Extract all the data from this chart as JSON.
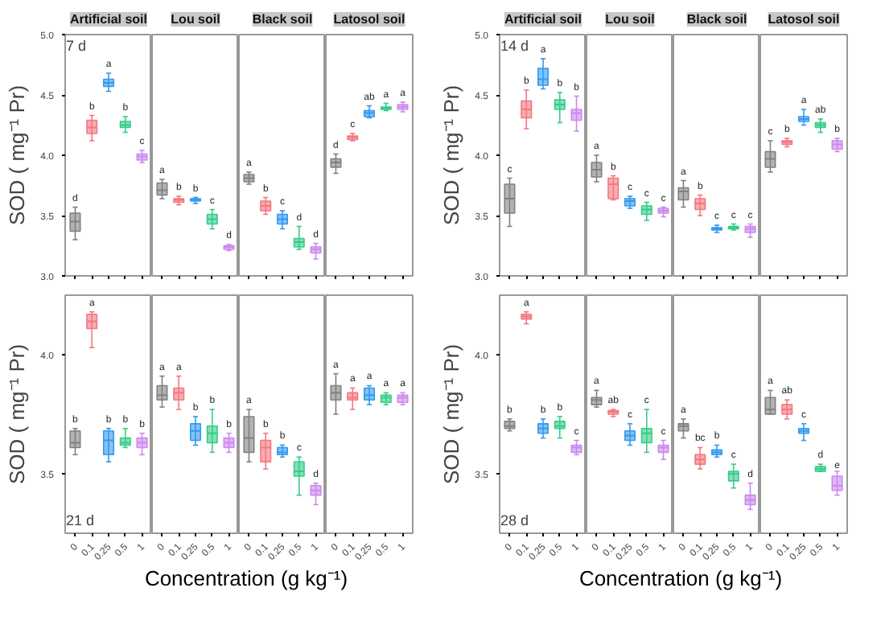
{
  "chart_data": [
    {
      "type": "box",
      "title": "Artificial soil",
      "ylabel": "SOD ( mg⁻¹ Pr)",
      "tick_labels": "y",
      "categories": [
        "0",
        "0.1",
        "0.25",
        "0.5",
        "1"
      ],
      "colors": [
        "#808080",
        "#f4777f",
        "#3399ee",
        "#33cc88",
        "#cc88ee"
      ],
      "ylim": [
        3.0,
        5.0
      ],
      "yticks": [
        {
          "value": 3.0,
          "label": "3.0"
        },
        {
          "value": 3.5,
          "label": "3.5"
        },
        {
          "value": 4.0,
          "label": "4.0"
        },
        {
          "value": 4.5,
          "label": "4.5"
        },
        {
          "value": 5.0,
          "label": "5.0"
        }
      ],
      "boxes": [
        {
          "low": 3.3,
          "q1": 3.37,
          "median": 3.45,
          "q3": 3.52,
          "high": 3.57
        },
        {
          "low": 4.12,
          "q1": 4.18,
          "median": 4.23,
          "q3": 4.29,
          "high": 4.33
        },
        {
          "low": 4.53,
          "q1": 4.57,
          "median": 4.6,
          "q3": 4.63,
          "high": 4.68
        },
        {
          "low": 4.19,
          "q1": 4.23,
          "median": 4.25,
          "q3": 4.28,
          "high": 4.32
        },
        {
          "low": 3.94,
          "q1": 3.96,
          "median": 3.99,
          "q3": 4.01,
          "high": 4.04
        }
      ],
      "annotations": [
        "7 d",
        {
          "text": "d",
          "x": "0",
          "y": 3.57
        },
        {
          "text": "b",
          "x": "0.1",
          "y": 4.33
        },
        {
          "text": "a",
          "x": "0.25",
          "y": 4.68
        },
        {
          "text": "b",
          "x": "0.5",
          "y": 4.32
        },
        {
          "text": "c",
          "x": "1",
          "y": 4.04
        }
      ]
    },
    {
      "type": "box",
      "title": "Lou soil",
      "tick_labels": false,
      "categories": [
        "0",
        "0.1",
        "0.25",
        "0.5",
        "1"
      ],
      "colors": [
        "#808080",
        "#f4777f",
        "#3399ee",
        "#33cc88",
        "#cc88ee"
      ],
      "ylim": [
        3.0,
        5.0
      ],
      "boxes": [
        {
          "low": 3.64,
          "q1": 3.67,
          "median": 3.71,
          "q3": 3.77,
          "high": 3.8
        },
        {
          "low": 3.59,
          "q1": 3.61,
          "median": 3.63,
          "q3": 3.64,
          "high": 3.66
        },
        {
          "low": 3.6,
          "q1": 3.62,
          "median": 3.63,
          "q3": 3.64,
          "high": 3.65
        },
        {
          "low": 3.39,
          "q1": 3.43,
          "median": 3.47,
          "q3": 3.51,
          "high": 3.55
        },
        {
          "low": 3.21,
          "q1": 3.22,
          "median": 3.24,
          "q3": 3.25,
          "high": 3.26
        }
      ],
      "annotations": [
        {
          "text": "a",
          "x": "0",
          "y": 3.8
        },
        {
          "text": "b",
          "x": "0.1",
          "y": 3.66
        },
        {
          "text": "b",
          "x": "0.25",
          "y": 3.65
        },
        {
          "text": "c",
          "x": "0.5",
          "y": 3.55
        },
        {
          "text": "d",
          "x": "1",
          "y": 3.26
        }
      ]
    },
    {
      "type": "box",
      "title": "Black soil",
      "tick_labels": false,
      "categories": [
        "0",
        "0.1",
        "0.25",
        "0.5",
        "1"
      ],
      "colors": [
        "#808080",
        "#f4777f",
        "#3399ee",
        "#33cc88",
        "#cc88ee"
      ],
      "ylim": [
        3.0,
        5.0
      ],
      "boxes": [
        {
          "low": 3.76,
          "q1": 3.78,
          "median": 3.81,
          "q3": 3.84,
          "high": 3.86
        },
        {
          "low": 3.51,
          "q1": 3.54,
          "median": 3.58,
          "q3": 3.62,
          "high": 3.65
        },
        {
          "low": 3.39,
          "q1": 3.43,
          "median": 3.47,
          "q3": 3.51,
          "high": 3.54
        },
        {
          "low": 3.22,
          "q1": 3.24,
          "median": 3.28,
          "q3": 3.31,
          "high": 3.41
        },
        {
          "low": 3.14,
          "q1": 3.19,
          "median": 3.22,
          "q3": 3.24,
          "high": 3.27
        }
      ],
      "annotations": [
        {
          "text": "a",
          "x": "0",
          "y": 3.86
        },
        {
          "text": "b",
          "x": "0.1",
          "y": 3.65
        },
        {
          "text": "c",
          "x": "0.25",
          "y": 3.54
        },
        {
          "text": "d",
          "x": "0.5",
          "y": 3.41
        },
        {
          "text": "d",
          "x": "1",
          "y": 3.27
        }
      ]
    },
    {
      "type": "box",
      "title": "Latosol soil",
      "tick_labels": false,
      "categories": [
        "0",
        "0.1",
        "0.25",
        "0.5",
        "1"
      ],
      "colors": [
        "#808080",
        "#f4777f",
        "#3399ee",
        "#33cc88",
        "#cc88ee"
      ],
      "ylim": [
        3.0,
        5.0
      ],
      "boxes": [
        {
          "low": 3.85,
          "q1": 3.9,
          "median": 3.94,
          "q3": 3.97,
          "high": 4.01
        },
        {
          "low": 4.12,
          "q1": 4.13,
          "median": 4.15,
          "q3": 4.16,
          "high": 4.18
        },
        {
          "low": 4.31,
          "q1": 4.32,
          "median": 4.35,
          "q3": 4.37,
          "high": 4.41
        },
        {
          "low": 4.37,
          "q1": 4.38,
          "median": 4.39,
          "q3": 4.4,
          "high": 4.43
        },
        {
          "low": 4.36,
          "q1": 4.38,
          "median": 4.4,
          "q3": 4.42,
          "high": 4.44
        }
      ],
      "annotations": [
        {
          "text": "d",
          "x": "0",
          "y": 4.01
        },
        {
          "text": "c",
          "x": "0.1",
          "y": 4.18
        },
        {
          "text": "ab",
          "x": "0.25",
          "y": 4.41
        },
        {
          "text": "a",
          "x": "0.5",
          "y": 4.43
        },
        {
          "text": "a",
          "x": "1",
          "y": 4.44
        }
      ]
    },
    {
      "type": "box",
      "title": "Artificial soil",
      "ylabel": "SOD ( mg⁻¹ Pr)",
      "tick_labels": "y",
      "categories": [
        "0",
        "0.1",
        "0.25",
        "0.5",
        "1"
      ],
      "colors": [
        "#808080",
        "#f4777f",
        "#3399ee",
        "#33cc88",
        "#cc88ee"
      ],
      "ylim": [
        3.0,
        5.0
      ],
      "yticks": [
        {
          "value": 3.0,
          "label": "3.0"
        },
        {
          "value": 3.5,
          "label": "3.5"
        },
        {
          "value": 4.0,
          "label": "4.0"
        },
        {
          "value": 4.5,
          "label": "4.5"
        },
        {
          "value": 5.0,
          "label": "5.0"
        }
      ],
      "boxes": [
        {
          "low": 3.41,
          "q1": 3.52,
          "median": 3.64,
          "q3": 3.76,
          "high": 3.81
        },
        {
          "low": 4.22,
          "q1": 4.31,
          "median": 4.38,
          "q3": 4.45,
          "high": 4.54
        },
        {
          "low": 4.55,
          "q1": 4.58,
          "median": 4.63,
          "q3": 4.72,
          "high": 4.8
        },
        {
          "low": 4.27,
          "q1": 4.38,
          "median": 4.42,
          "q3": 4.46,
          "high": 4.52
        },
        {
          "low": 4.2,
          "q1": 4.29,
          "median": 4.35,
          "q3": 4.38,
          "high": 4.49
        }
      ],
      "annotations": [
        "14 d",
        {
          "text": "c",
          "x": "0",
          "y": 3.81
        },
        {
          "text": "b",
          "x": "0.1",
          "y": 4.54
        },
        {
          "text": "a",
          "x": "0.25",
          "y": 4.8
        },
        {
          "text": "b",
          "x": "0.5",
          "y": 4.52
        },
        {
          "text": "b",
          "x": "1",
          "y": 4.49
        }
      ]
    },
    {
      "type": "box",
      "title": "Lou soil",
      "tick_labels": false,
      "categories": [
        "0",
        "0.1",
        "0.25",
        "0.5",
        "1"
      ],
      "colors": [
        "#808080",
        "#f4777f",
        "#3399ee",
        "#33cc88",
        "#cc88ee"
      ],
      "ylim": [
        3.0,
        5.0
      ],
      "boxes": [
        {
          "low": 3.78,
          "q1": 3.82,
          "median": 3.88,
          "q3": 3.94,
          "high": 4.0
        },
        {
          "low": 3.63,
          "q1": 3.64,
          "median": 3.76,
          "q3": 3.81,
          "high": 3.83
        },
        {
          "low": 3.56,
          "q1": 3.58,
          "median": 3.62,
          "q3": 3.64,
          "high": 3.66
        },
        {
          "low": 3.46,
          "q1": 3.51,
          "median": 3.55,
          "q3": 3.58,
          "high": 3.61
        },
        {
          "low": 3.49,
          "q1": 3.52,
          "median": 3.54,
          "q3": 3.56,
          "high": 3.57
        }
      ],
      "annotations": [
        {
          "text": "a",
          "x": "0",
          "y": 4.0
        },
        {
          "text": "b",
          "x": "0.1",
          "y": 3.83
        },
        {
          "text": "c",
          "x": "0.25",
          "y": 3.66
        },
        {
          "text": "c",
          "x": "0.5",
          "y": 3.61
        },
        {
          "text": "c",
          "x": "1",
          "y": 3.57
        }
      ]
    },
    {
      "type": "box",
      "title": "Black soil",
      "tick_labels": false,
      "categories": [
        "0",
        "0.1",
        "0.25",
        "0.5",
        "1"
      ],
      "colors": [
        "#808080",
        "#f4777f",
        "#3399ee",
        "#33cc88",
        "#cc88ee"
      ],
      "ylim": [
        3.0,
        5.0
      ],
      "boxes": [
        {
          "low": 3.57,
          "q1": 3.63,
          "median": 3.7,
          "q3": 3.73,
          "high": 3.79
        },
        {
          "low": 3.5,
          "q1": 3.55,
          "median": 3.6,
          "q3": 3.64,
          "high": 3.67
        },
        {
          "low": 3.36,
          "q1": 3.38,
          "median": 3.39,
          "q3": 3.4,
          "high": 3.42
        },
        {
          "low": 3.38,
          "q1": 3.39,
          "median": 3.4,
          "q3": 3.41,
          "high": 3.43
        },
        {
          "low": 3.32,
          "q1": 3.36,
          "median": 3.39,
          "q3": 3.41,
          "high": 3.43
        }
      ],
      "annotations": [
        {
          "text": "a",
          "x": "0",
          "y": 3.79
        },
        {
          "text": "b",
          "x": "0.1",
          "y": 3.67
        },
        {
          "text": "c",
          "x": "0.25",
          "y": 3.42
        },
        {
          "text": "c",
          "x": "0.5",
          "y": 3.43
        },
        {
          "text": "c",
          "x": "1",
          "y": 3.43
        }
      ]
    },
    {
      "type": "box",
      "title": "Latosol soil",
      "tick_labels": false,
      "categories": [
        "0",
        "0.1",
        "0.25",
        "0.5",
        "1"
      ],
      "colors": [
        "#808080",
        "#f4777f",
        "#3399ee",
        "#33cc88",
        "#cc88ee"
      ],
      "ylim": [
        3.0,
        5.0
      ],
      "boxes": [
        {
          "low": 3.86,
          "q1": 3.9,
          "median": 3.97,
          "q3": 4.03,
          "high": 4.12
        },
        {
          "low": 4.07,
          "q1": 4.09,
          "median": 4.11,
          "q3": 4.12,
          "high": 4.14
        },
        {
          "low": 4.25,
          "q1": 4.28,
          "median": 4.3,
          "q3": 4.32,
          "high": 4.38
        },
        {
          "low": 4.19,
          "q1": 4.23,
          "median": 4.25,
          "q3": 4.27,
          "high": 4.3
        },
        {
          "low": 4.03,
          "q1": 4.05,
          "median": 4.09,
          "q3": 4.12,
          "high": 4.14
        }
      ],
      "annotations": [
        {
          "text": "c",
          "x": "0",
          "y": 4.12
        },
        {
          "text": "b",
          "x": "0.1",
          "y": 4.14
        },
        {
          "text": "a",
          "x": "0.25",
          "y": 4.38
        },
        {
          "text": "ab",
          "x": "0.5",
          "y": 4.3
        },
        {
          "text": "b",
          "x": "1",
          "y": 4.14
        }
      ]
    },
    {
      "type": "box",
      "ylabel": "SOD ( mg⁻¹ Pr)",
      "categories": [
        "0",
        "0.1",
        "0.25",
        "0.5",
        "1"
      ],
      "colors": [
        "#808080",
        "#f4777f",
        "#3399ee",
        "#33cc88",
        "#cc88ee"
      ],
      "ylim": [
        3.25,
        4.25
      ],
      "yticks": [
        {
          "value": 3.5,
          "label": "3.5"
        },
        {
          "value": 4.0,
          "label": "4.0"
        }
      ],
      "boxes": [
        {
          "low": 3.58,
          "q1": 3.61,
          "median": 3.63,
          "q3": 3.68,
          "high": 3.69
        },
        {
          "low": 4.03,
          "q1": 4.11,
          "median": 4.14,
          "q3": 4.17,
          "high": 4.18
        },
        {
          "low": 3.55,
          "q1": 3.58,
          "median": 3.64,
          "q3": 3.68,
          "high": 3.69
        },
        {
          "low": 3.61,
          "q1": 3.62,
          "median": 3.63,
          "q3": 3.65,
          "high": 3.69
        },
        {
          "low": 3.58,
          "q1": 3.61,
          "median": 3.63,
          "q3": 3.65,
          "high": 3.67
        }
      ],
      "annotations": [
        "21 d",
        {
          "text": "b",
          "x": "0",
          "y": 3.69
        },
        {
          "text": "a",
          "x": "0.1",
          "y": 4.18
        },
        {
          "text": "b",
          "x": "0.25",
          "y": 3.69
        },
        {
          "text": "b",
          "x": "0.5",
          "y": 3.69
        },
        {
          "text": "b",
          "x": "1",
          "y": 3.67
        }
      ]
    },
    {
      "type": "box",
      "tick_labels": "x",
      "categories": [
        "0",
        "0.1",
        "0.25",
        "0.5",
        "1"
      ],
      "colors": [
        "#808080",
        "#f4777f",
        "#3399ee",
        "#33cc88",
        "#cc88ee"
      ],
      "ylim": [
        3.25,
        4.25
      ],
      "boxes": [
        {
          "low": 3.78,
          "q1": 3.81,
          "median": 3.83,
          "q3": 3.87,
          "high": 3.91
        },
        {
          "low": 3.77,
          "q1": 3.81,
          "median": 3.84,
          "q3": 3.86,
          "high": 3.91
        },
        {
          "low": 3.62,
          "q1": 3.64,
          "median": 3.68,
          "q3": 3.71,
          "high": 3.74
        },
        {
          "low": 3.59,
          "q1": 3.63,
          "median": 3.67,
          "q3": 3.7,
          "high": 3.77
        },
        {
          "low": 3.59,
          "q1": 3.61,
          "median": 3.63,
          "q3": 3.65,
          "high": 3.67
        }
      ],
      "annotations": [
        {
          "text": "a",
          "x": "0",
          "y": 3.91
        },
        {
          "text": "a",
          "x": "0.1",
          "y": 3.91
        },
        {
          "text": "b",
          "x": "0.25",
          "y": 3.74
        },
        {
          "text": "b",
          "x": "0.5",
          "y": 3.77
        },
        {
          "text": "b",
          "x": "1",
          "y": 3.67
        }
      ]
    },
    {
      "type": "box",
      "tick_labels": "x",
      "xlabel": "Concentration (g kg⁻¹)",
      "categories": [
        "0",
        "0.1",
        "0.25",
        "0.5",
        "1"
      ],
      "colors": [
        "#808080",
        "#f4777f",
        "#3399ee",
        "#33cc88",
        "#cc88ee"
      ],
      "ylim": [
        3.25,
        4.25
      ],
      "boxes": [
        {
          "low": 3.55,
          "q1": 3.59,
          "median": 3.65,
          "q3": 3.74,
          "high": 3.77
        },
        {
          "low": 3.52,
          "q1": 3.55,
          "median": 3.61,
          "q3": 3.64,
          "high": 3.67
        },
        {
          "low": 3.57,
          "q1": 3.58,
          "median": 3.59,
          "q3": 3.61,
          "high": 3.62
        },
        {
          "low": 3.41,
          "q1": 3.49,
          "median": 3.51,
          "q3": 3.55,
          "high": 3.57
        },
        {
          "low": 3.37,
          "q1": 3.41,
          "median": 3.43,
          "q3": 3.45,
          "high": 3.46
        }
      ],
      "annotations": [
        {
          "text": "a",
          "x": "0",
          "y": 3.77
        },
        {
          "text": "b",
          "x": "0.1",
          "y": 3.67
        },
        {
          "text": "b",
          "x": "0.25",
          "y": 3.62
        },
        {
          "text": "c",
          "x": "0.5",
          "y": 3.57
        },
        {
          "text": "d",
          "x": "1",
          "y": 3.46
        }
      ]
    },
    {
      "type": "box",
      "tick_labels": "x",
      "categories": [
        "0",
        "0.1",
        "0.25",
        "0.5",
        "1"
      ],
      "colors": [
        "#808080",
        "#f4777f",
        "#3399ee",
        "#33cc88",
        "#cc88ee"
      ],
      "ylim": [
        3.25,
        4.25
      ],
      "boxes": [
        {
          "low": 3.75,
          "q1": 3.81,
          "median": 3.84,
          "q3": 3.87,
          "high": 3.92
        },
        {
          "low": 3.77,
          "q1": 3.81,
          "median": 3.82,
          "q3": 3.84,
          "high": 3.86
        },
        {
          "low": 3.79,
          "q1": 3.81,
          "median": 3.83,
          "q3": 3.86,
          "high": 3.87
        },
        {
          "low": 3.79,
          "q1": 3.8,
          "median": 3.82,
          "q3": 3.83,
          "high": 3.84
        },
        {
          "low": 3.79,
          "q1": 3.8,
          "median": 3.82,
          "q3": 3.83,
          "high": 3.84
        }
      ],
      "annotations": [
        {
          "text": "a",
          "x": "0",
          "y": 3.92
        },
        {
          "text": "a",
          "x": "0.1",
          "y": 3.86
        },
        {
          "text": "a",
          "x": "0.25",
          "y": 3.87
        },
        {
          "text": "a",
          "x": "0.5",
          "y": 3.84
        },
        {
          "text": "a",
          "x": "1",
          "y": 3.84
        }
      ]
    },
    {
      "type": "box",
      "ylabel": "SOD ( mg⁻¹ Pr)",
      "categories": [
        "0",
        "0.1",
        "0.25",
        "0.5",
        "1"
      ],
      "colors": [
        "#808080",
        "#f4777f",
        "#3399ee",
        "#33cc88",
        "#cc88ee"
      ],
      "ylim": [
        3.25,
        4.25
      ],
      "yticks": [
        {
          "value": 3.5,
          "label": "3.5"
        },
        {
          "value": 4.0,
          "label": "4.0"
        }
      ],
      "boxes": [
        {
          "low": 3.68,
          "q1": 3.69,
          "median": 3.7,
          "q3": 3.72,
          "high": 3.73
        },
        {
          "low": 4.13,
          "q1": 4.15,
          "median": 4.16,
          "q3": 4.17,
          "high": 4.18
        },
        {
          "low": 3.65,
          "q1": 3.67,
          "median": 3.69,
          "q3": 3.71,
          "high": 3.73
        },
        {
          "low": 3.65,
          "q1": 3.69,
          "median": 3.7,
          "q3": 3.72,
          "high": 3.74
        },
        {
          "low": 3.58,
          "q1": 3.59,
          "median": 3.61,
          "q3": 3.62,
          "high": 3.64
        }
      ],
      "annotations": [
        "28 d",
        {
          "text": "b",
          "x": "0",
          "y": 3.73
        },
        {
          "text": "a",
          "x": "0.1",
          "y": 4.18
        },
        {
          "text": "b",
          "x": "0.25",
          "y": 3.73
        },
        {
          "text": "b",
          "x": "0.5",
          "y": 3.74
        },
        {
          "text": "c",
          "x": "1",
          "y": 3.64
        }
      ]
    },
    {
      "type": "box",
      "tick_labels": "x",
      "categories": [
        "0",
        "0.1",
        "0.25",
        "0.5",
        "1"
      ],
      "colors": [
        "#808080",
        "#f4777f",
        "#3399ee",
        "#33cc88",
        "#cc88ee"
      ],
      "ylim": [
        3.25,
        4.25
      ],
      "boxes": [
        {
          "low": 3.78,
          "q1": 3.79,
          "median": 3.81,
          "q3": 3.82,
          "high": 3.85
        },
        {
          "low": 3.74,
          "q1": 3.75,
          "median": 3.76,
          "q3": 3.765,
          "high": 3.77
        },
        {
          "low": 3.62,
          "q1": 3.64,
          "median": 3.66,
          "q3": 3.68,
          "high": 3.71
        },
        {
          "low": 3.59,
          "q1": 3.63,
          "median": 3.67,
          "q3": 3.69,
          "high": 3.77
        },
        {
          "low": 3.56,
          "q1": 3.59,
          "median": 3.61,
          "q3": 3.62,
          "high": 3.64
        }
      ],
      "annotations": [
        {
          "text": "a",
          "x": "0",
          "y": 3.85
        },
        {
          "text": "ab",
          "x": "0.1",
          "y": 3.77
        },
        {
          "text": "c",
          "x": "0.25",
          "y": 3.71
        },
        {
          "text": "c",
          "x": "0.5",
          "y": 3.77
        },
        {
          "text": "c",
          "x": "1",
          "y": 3.64
        }
      ]
    },
    {
      "type": "box",
      "tick_labels": "x",
      "xlabel": "Concentration (g kg⁻¹)",
      "categories": [
        "0",
        "0.1",
        "0.25",
        "0.5",
        "1"
      ],
      "colors": [
        "#808080",
        "#f4777f",
        "#3399ee",
        "#33cc88",
        "#cc88ee"
      ],
      "ylim": [
        3.25,
        4.25
      ],
      "boxes": [
        {
          "low": 3.65,
          "q1": 3.68,
          "median": 3.7,
          "q3": 3.71,
          "high": 3.73
        },
        {
          "low": 3.52,
          "q1": 3.54,
          "median": 3.56,
          "q3": 3.58,
          "high": 3.61
        },
        {
          "low": 3.57,
          "q1": 3.58,
          "median": 3.59,
          "q3": 3.6,
          "high": 3.62
        },
        {
          "low": 3.44,
          "q1": 3.47,
          "median": 3.5,
          "q3": 3.51,
          "high": 3.54
        },
        {
          "low": 3.35,
          "q1": 3.37,
          "median": 3.39,
          "q3": 3.41,
          "high": 3.46
        }
      ],
      "annotations": [
        {
          "text": "a",
          "x": "0",
          "y": 3.73
        },
        {
          "text": "bc",
          "x": "0.1",
          "y": 3.61
        },
        {
          "text": "b",
          "x": "0.25",
          "y": 3.62
        },
        {
          "text": "c",
          "x": "0.5",
          "y": 3.54
        },
        {
          "text": "d",
          "x": "1",
          "y": 3.46
        }
      ]
    },
    {
      "type": "box",
      "tick_labels": "x",
      "categories": [
        "0",
        "0.1",
        "0.25",
        "0.5",
        "1"
      ],
      "colors": [
        "#808080",
        "#f4777f",
        "#3399ee",
        "#33cc88",
        "#cc88ee"
      ],
      "ylim": [
        3.25,
        4.25
      ],
      "boxes": [
        {
          "low": 3.75,
          "q1": 3.75,
          "median": 3.77,
          "q3": 3.82,
          "high": 3.85
        },
        {
          "low": 3.73,
          "q1": 3.75,
          "median": 3.77,
          "q3": 3.79,
          "high": 3.81
        },
        {
          "low": 3.64,
          "q1": 3.67,
          "median": 3.68,
          "q3": 3.69,
          "high": 3.71
        },
        {
          "low": 3.51,
          "q1": 3.51,
          "median": 3.52,
          "q3": 3.53,
          "high": 3.54
        },
        {
          "low": 3.41,
          "q1": 3.43,
          "median": 3.45,
          "q3": 3.49,
          "high": 3.51
        }
      ],
      "annotations": [
        {
          "text": "a",
          "x": "0",
          "y": 3.85
        },
        {
          "text": "ab",
          "x": "0.1",
          "y": 3.81
        },
        {
          "text": "c",
          "x": "0.25",
          "y": 3.71
        },
        {
          "text": "d",
          "x": "0.5",
          "y": 3.54
        },
        {
          "text": "e",
          "x": "1",
          "y": 3.51
        }
      ]
    }
  ]
}
